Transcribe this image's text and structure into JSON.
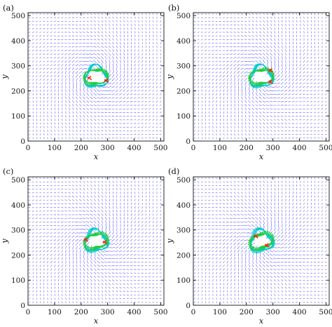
{
  "chart_data": [
    {
      "panel": "(a)",
      "type": "quiver",
      "xlabel": "x",
      "ylabel": "y",
      "xlim": [
        0,
        512
      ],
      "ylim": [
        0,
        512
      ],
      "xticks": [
        0,
        100,
        200,
        300,
        400,
        500
      ],
      "yticks": [
        0,
        100,
        200,
        300,
        400,
        500
      ],
      "center": [
        256,
        256
      ],
      "rotation_deg": 10,
      "hot_spots": [
        {
          "color": "#ff2200",
          "x": 296,
          "y": 240
        },
        {
          "color": "#ff2200",
          "x": 232,
          "y": 250
        }
      ]
    },
    {
      "panel": "(b)",
      "type": "quiver",
      "xlabel": "x",
      "ylabel": "y",
      "xlim": [
        0,
        512
      ],
      "ylim": [
        0,
        512
      ],
      "xticks": [
        0,
        100,
        200,
        300,
        400,
        500
      ],
      "yticks": [
        0,
        100,
        200,
        300,
        400,
        500
      ],
      "center": [
        256,
        256
      ],
      "rotation_deg": 20,
      "hot_spots": [
        {
          "color": "#ff2200",
          "x": 292,
          "y": 234
        },
        {
          "color": "#ff2200",
          "x": 292,
          "y": 280
        }
      ]
    },
    {
      "panel": "(c)",
      "type": "quiver",
      "xlabel": "x",
      "ylabel": "y",
      "xlim": [
        0,
        512
      ],
      "ylim": [
        0,
        512
      ],
      "xticks": [
        0,
        100,
        200,
        300,
        400,
        500
      ],
      "yticks": [
        0,
        100,
        200,
        300,
        400,
        500
      ],
      "center": [
        256,
        256
      ],
      "rotation_deg": 30,
      "hot_spots": [
        {
          "color": "#ff2200",
          "x": 218,
          "y": 260
        },
        {
          "color": "#ff2200",
          "x": 290,
          "y": 250
        }
      ]
    },
    {
      "panel": "(d)",
      "type": "quiver",
      "xlabel": "x",
      "ylabel": "y",
      "xlim": [
        0,
        512
      ],
      "ylim": [
        0,
        512
      ],
      "xticks": [
        0,
        100,
        200,
        300,
        400,
        500
      ],
      "yticks": [
        0,
        100,
        200,
        300,
        400,
        500
      ],
      "center": [
        256,
        256
      ],
      "rotation_deg": 40,
      "hot_spots": [
        {
          "color": "#ff2200",
          "x": 236,
          "y": 274
        },
        {
          "color": "#ff2200",
          "x": 278,
          "y": 238
        }
      ]
    }
  ],
  "colors": {
    "arrow": "#2a2aff",
    "ring_inner": "#22cc44",
    "ring_outer": "#00cccc",
    "hot": "#ff2200",
    "axis": "#111111"
  }
}
